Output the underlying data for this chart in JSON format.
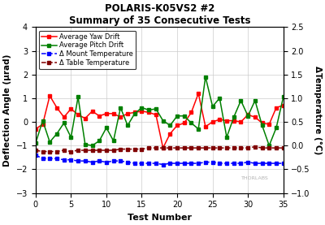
{
  "title1": "POLARIS-K05VS2 #2",
  "title2": "Summary of 35 Consecutive Tests",
  "xlabel": "Test Number",
  "ylabel_left": "Deflection Angle (μrad)",
  "ylabel_right": "ΔTemperature (°C)",
  "x": [
    0,
    1,
    2,
    3,
    4,
    5,
    6,
    7,
    8,
    9,
    10,
    11,
    12,
    13,
    14,
    15,
    16,
    17,
    18,
    19,
    20,
    21,
    22,
    23,
    24,
    25,
    26,
    27,
    28,
    29,
    30,
    31,
    32,
    33,
    34,
    35
  ],
  "yaw": [
    -0.3,
    -0.1,
    1.1,
    0.6,
    0.2,
    0.55,
    0.3,
    0.15,
    0.45,
    0.25,
    0.35,
    0.35,
    0.2,
    0.35,
    0.4,
    0.45,
    0.4,
    0.3,
    -1.1,
    -0.5,
    -0.15,
    -0.05,
    0.4,
    1.2,
    -0.2,
    0.0,
    0.1,
    0.05,
    0.05,
    0.0,
    0.3,
    0.2,
    -0.05,
    -0.1,
    0.6,
    0.7
  ],
  "pitch": [
    -0.9,
    0.05,
    -0.85,
    -0.5,
    -0.05,
    -0.65,
    1.05,
    -0.95,
    -1.0,
    -0.8,
    -0.25,
    -0.8,
    0.6,
    -0.15,
    0.35,
    0.6,
    0.5,
    0.55,
    0.05,
    -0.15,
    0.25,
    0.25,
    -0.05,
    -0.3,
    1.9,
    0.65,
    1.0,
    -0.65,
    0.2,
    0.9,
    0.25,
    0.9,
    -0.15,
    -1.0,
    -0.25,
    1.05
  ],
  "mount_temp": [
    -1.4,
    -1.55,
    -1.55,
    -1.55,
    -1.6,
    -1.6,
    -1.65,
    -1.65,
    -1.7,
    -1.65,
    -1.7,
    -1.65,
    -1.65,
    -1.7,
    -1.75,
    -1.75,
    -1.75,
    -1.75,
    -1.8,
    -1.75,
    -1.75,
    -1.75,
    -1.75,
    -1.75,
    -1.7,
    -1.7,
    -1.75,
    -1.75,
    -1.75,
    -1.75,
    -1.7,
    -1.75,
    -1.75,
    -1.75,
    -1.75,
    -1.75
  ],
  "table_temp": [
    -1.2,
    -1.25,
    -1.25,
    -1.25,
    -1.2,
    -1.25,
    -1.2,
    -1.2,
    -1.2,
    -1.2,
    -1.2,
    -1.2,
    -1.15,
    -1.15,
    -1.15,
    -1.15,
    -1.1,
    -1.1,
    -1.1,
    -1.1,
    -1.1,
    -1.1,
    -1.1,
    -1.1,
    -1.1,
    -1.1,
    -1.1,
    -1.1,
    -1.1,
    -1.1,
    -1.1,
    -1.05,
    -1.1,
    -1.1,
    -1.1,
    -1.1
  ],
  "yaw_color": "#ff0000",
  "pitch_color": "#008000",
  "mount_color": "#0000ff",
  "table_color": "#800000",
  "left_ylim": [
    -3,
    4
  ],
  "right_ylim": [
    -1.0,
    2.5
  ],
  "left_yticks": [
    -3,
    -2,
    -1,
    0,
    1,
    2,
    3,
    4
  ],
  "right_yticks": [
    -1.0,
    -0.5,
    0.0,
    0.5,
    1.0,
    1.5,
    2.0,
    2.5
  ],
  "xticks": [
    0,
    5,
    10,
    15,
    20,
    25,
    30,
    35
  ],
  "watermark": "THORLABS",
  "bg_color": "#ffffff",
  "grid_color": "#cccccc"
}
